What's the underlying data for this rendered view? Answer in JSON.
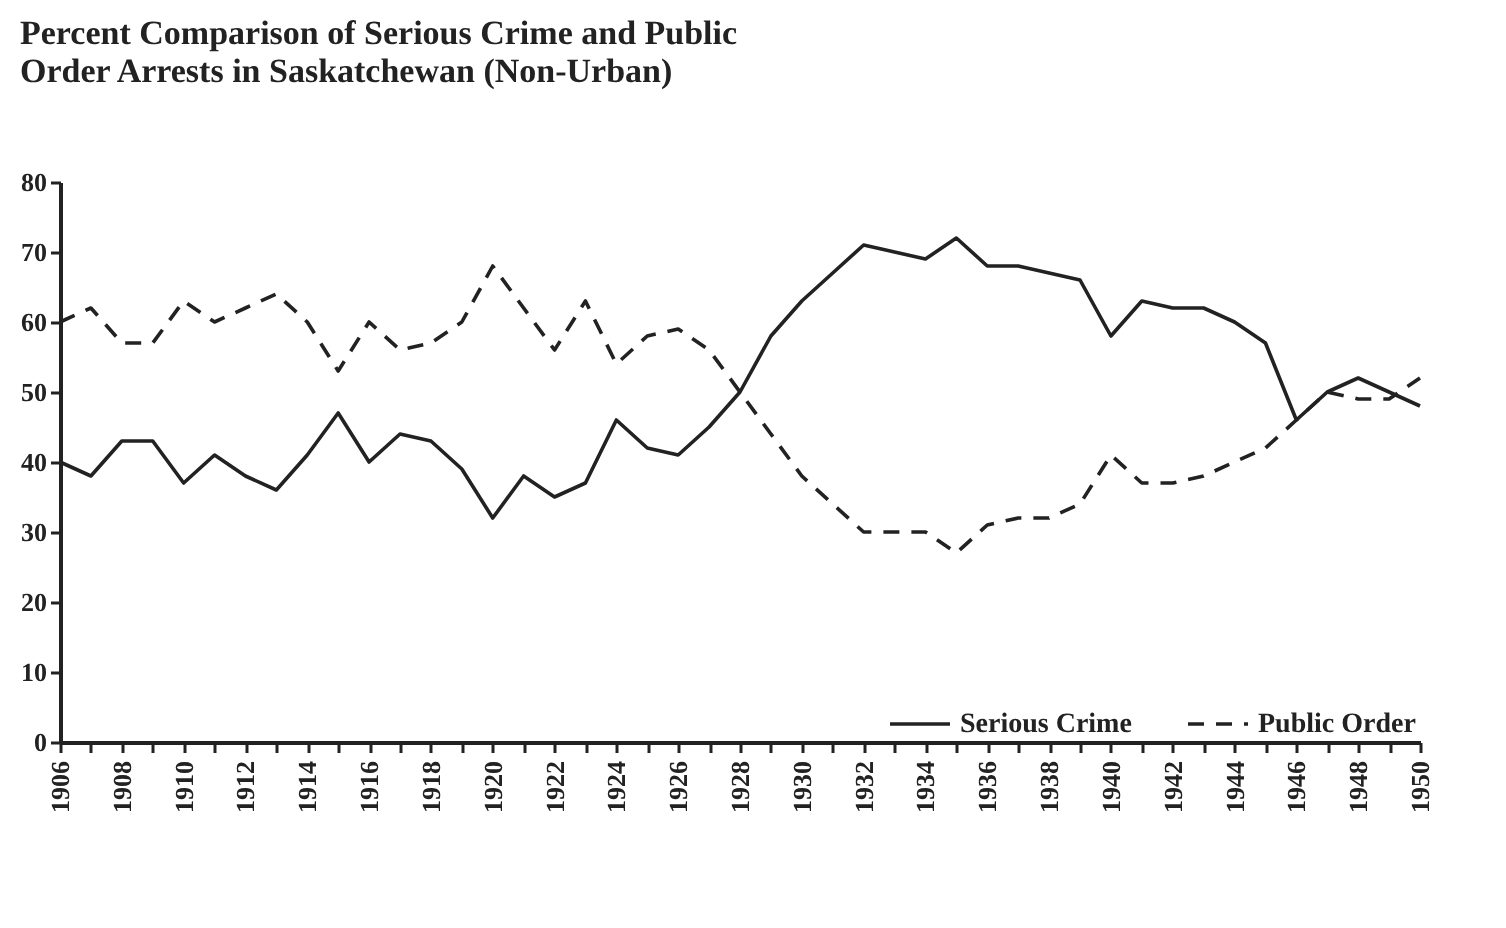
{
  "chart_data": {
    "type": "line",
    "title": "Percent Comparison of Serious Crime and Public Order Arrests in Saskatchewan (Non-Urban)",
    "x": [
      1906,
      1907,
      1908,
      1909,
      1910,
      1911,
      1912,
      1913,
      1914,
      1915,
      1916,
      1917,
      1918,
      1919,
      1920,
      1921,
      1922,
      1923,
      1924,
      1925,
      1926,
      1927,
      1928,
      1929,
      1930,
      1931,
      1932,
      1933,
      1934,
      1935,
      1936,
      1937,
      1938,
      1939,
      1940,
      1941,
      1942,
      1943,
      1944,
      1945,
      1946,
      1947,
      1948,
      1949,
      1950
    ],
    "series": [
      {
        "name": "Serious Crime",
        "color": "#222222",
        "line_style": "solid",
        "values": [
          40,
          38,
          43,
          43,
          37,
          41,
          38,
          36,
          41,
          47,
          40,
          44,
          43,
          39,
          32,
          38,
          35,
          37,
          46,
          42,
          41,
          45,
          50,
          58,
          63,
          67,
          71,
          70,
          69,
          72,
          68,
          68,
          67,
          66,
          58,
          63,
          62,
          62,
          60,
          57,
          46,
          50,
          52,
          50,
          48
        ]
      },
      {
        "name": "Public Order",
        "color": "#222222",
        "line_style": "dashed",
        "values": [
          60,
          62,
          57,
          57,
          63,
          60,
          62,
          64,
          60,
          53,
          60,
          56,
          57,
          60,
          68,
          62,
          56,
          63,
          54,
          58,
          59,
          56,
          50,
          44,
          38,
          34,
          30,
          30,
          30,
          27,
          31,
          32,
          32,
          34,
          41,
          37,
          37,
          38,
          40,
          42,
          46,
          50,
          49,
          49,
          52
        ]
      }
    ],
    "xlim": [
      1906,
      1950
    ],
    "xticks": [
      1906,
      {
        "value": 1907,
        "label": null
      },
      1908,
      {
        "value": 1909,
        "label": null
      },
      1910,
      {
        "value": 1911,
        "label": null
      },
      1912,
      {
        "value": 1913,
        "label": null
      },
      1914,
      {
        "value": 1915,
        "label": null
      },
      1916,
      {
        "value": 1917,
        "label": null
      },
      1918,
      {
        "value": 1919,
        "label": null
      },
      1920,
      {
        "value": 1921,
        "label": null
      },
      1922,
      {
        "value": 1923,
        "label": null
      },
      1924,
      {
        "value": 1925,
        "label": null
      },
      1926,
      {
        "value": 1927,
        "label": null
      },
      1928,
      {
        "value": 1929,
        "label": null
      },
      1930,
      {
        "value": 1931,
        "label": null
      },
      1932,
      {
        "value": 1933,
        "label": null
      },
      1934,
      {
        "value": 1935,
        "label": null
      },
      1936,
      {
        "value": 1937,
        "label": null
      },
      1938,
      {
        "value": 1939,
        "label": null
      },
      1940,
      {
        "value": 1941,
        "label": null
      },
      1942,
      {
        "value": 1943,
        "label": null
      },
      1944,
      {
        "value": 1945,
        "label": null
      },
      1946,
      {
        "value": 1947,
        "label": null
      },
      1948,
      {
        "value": 1949,
        "label": null
      },
      1950
    ],
    "ylim": [
      0,
      80
    ],
    "yticks": [
      0,
      10,
      20,
      30,
      40,
      50,
      60,
      70,
      80
    ],
    "grid": false,
    "legend": "bottom right",
    "marker": "none"
  }
}
